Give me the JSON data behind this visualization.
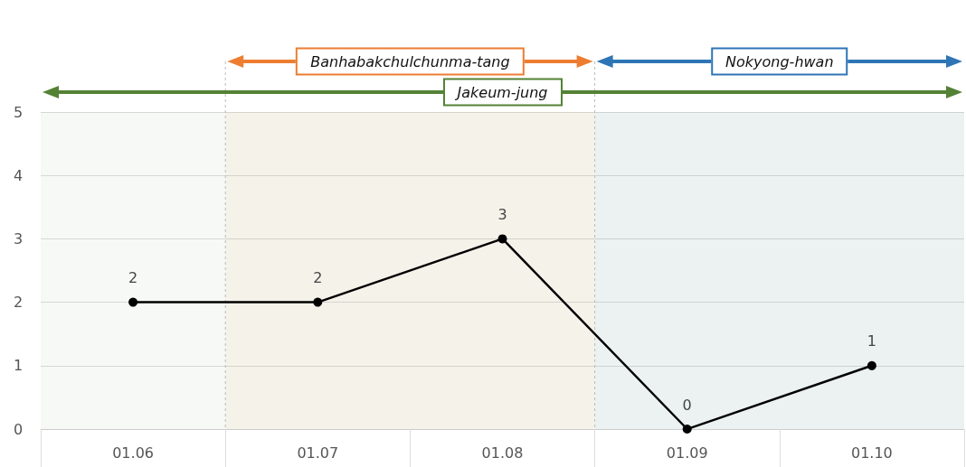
{
  "chart_data": {
    "type": "line",
    "categories": [
      "01.06",
      "01.07",
      "01.08",
      "01.09",
      "01.10"
    ],
    "series": [
      {
        "color": "#000000",
        "values": [
          2,
          2,
          3,
          0,
          1
        ]
      }
    ],
    "ylim": [
      0,
      5
    ],
    "yticks": [
      0,
      1,
      2,
      3,
      4,
      5
    ],
    "grid": "y",
    "marker": "circle",
    "line_style": "solid",
    "data_labels": true,
    "bands": [
      {
        "axis": "x",
        "from": "01.07",
        "to": "01.08",
        "label": "Banhabakchulchunma-tang",
        "color": "#ed7d31"
      },
      {
        "axis": "x",
        "from": "01.09",
        "to": "01.10",
        "label": "Nokyong-hwan",
        "color": "#2e75b6"
      },
      {
        "axis": "x",
        "from": "01.06",
        "to": "01.10",
        "label": "Jakeum-jung",
        "color": "#548235"
      }
    ]
  }
}
